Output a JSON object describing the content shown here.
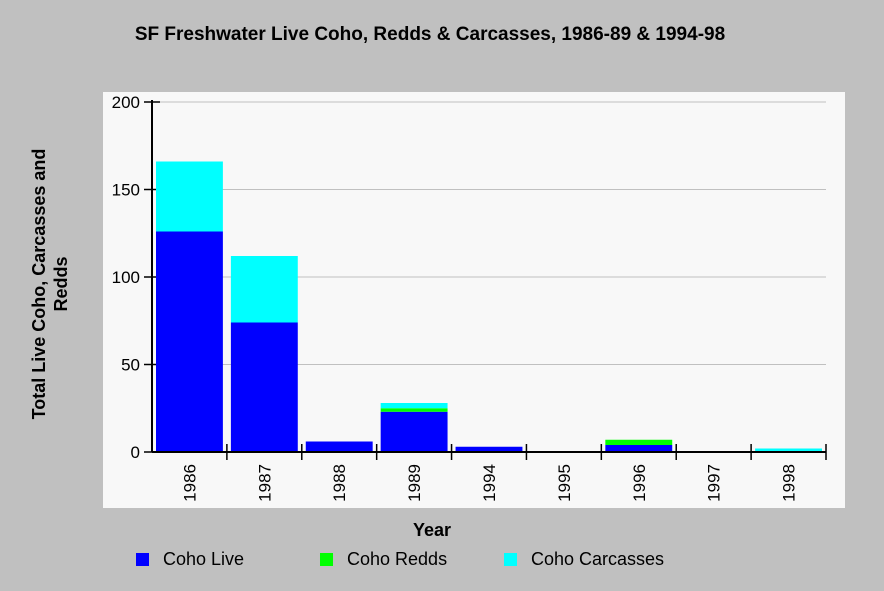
{
  "chart_data": {
    "type": "bar",
    "stacked": true,
    "title": "SF Freshwater Live Coho, Redds & Carcasses, 1986-89 & 1994-98",
    "xlabel": "Year",
    "ylabel": "Total Live Coho, Carcasses and Redds",
    "ylim": [
      0,
      200
    ],
    "yticks": [
      "0",
      "50",
      "100",
      "150",
      "200"
    ],
    "grid": true,
    "legend_position": "bottom",
    "categories": [
      "1986",
      "1987",
      "1988",
      "1989",
      "1994",
      "1995",
      "1996",
      "1997",
      "1998"
    ],
    "series": [
      {
        "name": "Coho Live",
        "color": "#0000ff",
        "values": [
          126,
          74,
          6,
          23,
          3,
          0,
          4,
          0,
          0
        ]
      },
      {
        "name": "Coho Redds",
        "color": "#00ff00",
        "values": [
          0,
          0,
          0,
          2,
          0,
          0,
          3,
          0,
          0
        ]
      },
      {
        "name": "Coho Carcasses",
        "color": "#00ffff",
        "values": [
          40,
          38,
          0,
          3,
          0,
          0,
          0,
          0,
          2
        ]
      }
    ]
  }
}
